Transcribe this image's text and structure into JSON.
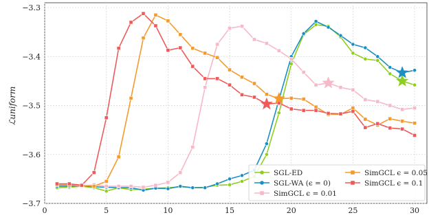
{
  "chart_data": {
    "type": "line",
    "ylabel": "ℒuniform",
    "xlabel": "",
    "xlim": [
      0,
      31
    ],
    "ylim": [
      -3.7,
      -3.29
    ],
    "xticks": [
      0,
      5,
      10,
      15,
      20,
      25,
      30
    ],
    "yticks": [
      -3.3,
      -3.4,
      -3.5,
      -3.6,
      -3.7
    ],
    "ytick_labels": [
      "−3.3",
      "−3.4",
      "−3.5",
      "−3.6",
      "−3.7"
    ],
    "grid": true,
    "legend_position": "bottom-right",
    "series": [
      {
        "name": "SGL-ED",
        "color": "#8fce1f",
        "marker": "circle",
        "x": [
          1,
          2,
          3,
          4,
          5,
          6,
          7,
          8,
          9,
          10,
          11,
          12,
          13,
          14,
          15,
          16,
          17,
          18,
          19,
          20,
          21,
          22,
          23,
          24,
          25,
          26,
          27,
          28,
          29,
          30
        ],
        "y": [
          -3.668,
          -3.667,
          -3.665,
          -3.668,
          -3.675,
          -3.668,
          -3.672,
          -3.671,
          -3.669,
          -3.668,
          -3.666,
          -3.668,
          -3.667,
          -3.663,
          -3.662,
          -3.655,
          -3.645,
          -3.6,
          -3.515,
          -3.415,
          -3.355,
          -3.335,
          -3.338,
          -3.36,
          -3.393,
          -3.405,
          -3.408,
          -3.435,
          -3.45,
          -3.458
        ],
        "star": {
          "x": 29,
          "y": -3.45
        }
      },
      {
        "name": "SGL-WA (ϵ = 0)",
        "color": "#1a8fc4",
        "marker": "circle",
        "x": [
          1,
          2,
          3,
          4,
          5,
          6,
          7,
          8,
          9,
          10,
          11,
          12,
          13,
          14,
          15,
          16,
          17,
          18,
          19,
          20,
          21,
          22,
          23,
          24,
          25,
          26,
          27,
          28,
          29,
          30
        ],
        "y": [
          -3.665,
          -3.665,
          -3.664,
          -3.666,
          -3.667,
          -3.668,
          -3.668,
          -3.673,
          -3.669,
          -3.67,
          -3.665,
          -3.668,
          -3.668,
          -3.66,
          -3.65,
          -3.643,
          -3.632,
          -3.578,
          -3.488,
          -3.4,
          -3.353,
          -3.328,
          -3.34,
          -3.357,
          -3.375,
          -3.382,
          -3.4,
          -3.422,
          -3.433,
          -3.428
        ],
        "star": {
          "x": 29,
          "y": -3.433
        }
      },
      {
        "name": "SimGCL ϵ = 0.01",
        "color": "#f7b8c8",
        "marker": "square",
        "x": [
          1,
          2,
          3,
          4,
          5,
          6,
          7,
          8,
          9,
          10,
          11,
          12,
          13,
          14,
          15,
          16,
          17,
          18,
          19,
          20,
          21,
          22,
          23,
          24,
          25,
          26,
          27,
          28,
          29,
          30
        ],
        "y": [
          -3.662,
          -3.662,
          -3.665,
          -3.662,
          -3.665,
          -3.665,
          -3.665,
          -3.667,
          -3.663,
          -3.657,
          -3.637,
          -3.585,
          -3.463,
          -3.375,
          -3.342,
          -3.338,
          -3.365,
          -3.373,
          -3.388,
          -3.405,
          -3.432,
          -3.458,
          -3.454,
          -3.463,
          -3.468,
          -3.488,
          -3.492,
          -3.5,
          -3.508,
          -3.505
        ],
        "star": {
          "x": 23,
          "y": -3.454
        }
      },
      {
        "name": "SimGCL ϵ = 0.05",
        "color": "#f59a2c",
        "marker": "square",
        "x": [
          1,
          2,
          3,
          4,
          5,
          6,
          7,
          8,
          9,
          10,
          11,
          12,
          13,
          14,
          15,
          16,
          17,
          18,
          19,
          20,
          21,
          22,
          23,
          24,
          25,
          26,
          27,
          28,
          29,
          30
        ],
        "y": [
          -3.662,
          -3.663,
          -3.663,
          -3.665,
          -3.655,
          -3.605,
          -3.485,
          -3.362,
          -3.315,
          -3.327,
          -3.355,
          -3.383,
          -3.393,
          -3.402,
          -3.427,
          -3.442,
          -3.455,
          -3.477,
          -3.486,
          -3.485,
          -3.487,
          -3.503,
          -3.518,
          -3.518,
          -3.505,
          -3.528,
          -3.54,
          -3.527,
          -3.532,
          -3.536
        ],
        "star": {
          "x": 19,
          "y": -3.486
        }
      },
      {
        "name": "SimGCL ϵ = 0.1",
        "color": "#ee5a5a",
        "marker": "square",
        "x": [
          1,
          2,
          3,
          4,
          5,
          6,
          7,
          8,
          9,
          10,
          11,
          12,
          13,
          14,
          15,
          16,
          17,
          18,
          19,
          20,
          21,
          22,
          23,
          24,
          25,
          26,
          27,
          28,
          29,
          30
        ],
        "y": [
          -3.66,
          -3.66,
          -3.663,
          -3.637,
          -3.525,
          -3.383,
          -3.33,
          -3.312,
          -3.337,
          -3.387,
          -3.382,
          -3.42,
          -3.445,
          -3.445,
          -3.458,
          -3.478,
          -3.483,
          -3.497,
          -3.495,
          -3.507,
          -3.51,
          -3.51,
          -3.516,
          -3.517,
          -3.512,
          -3.545,
          -3.537,
          -3.546,
          -3.548,
          -3.561
        ],
        "star": {
          "x": 18,
          "y": -3.497
        }
      }
    ],
    "legend_order": [
      0,
      1,
      2,
      3,
      4
    ],
    "legend_layout": [
      {
        "series": 0,
        "col": 0,
        "row": 0
      },
      {
        "series": 1,
        "col": 0,
        "row": 1
      },
      {
        "series": 2,
        "col": 0,
        "row": 2
      },
      {
        "series": 3,
        "col": 1,
        "row": 0
      },
      {
        "series": 4,
        "col": 1,
        "row": 1
      }
    ]
  }
}
